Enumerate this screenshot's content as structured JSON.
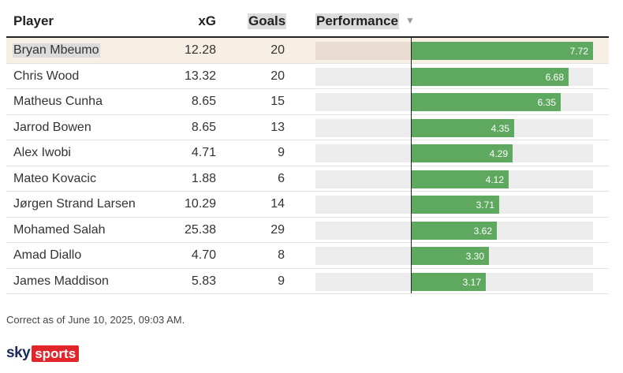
{
  "header": {
    "player": "Player",
    "xg": "xG",
    "goals": "Goals",
    "performance": "Performance",
    "sort_icon": "sort-descending-icon"
  },
  "chart_data": {
    "type": "bar",
    "highlighted_row": 0,
    "perf_range": [
      0,
      7.72
    ],
    "rows": [
      {
        "player": "Bryan Mbeumo",
        "xg": "12.28",
        "goals": "20",
        "performance": "7.72"
      },
      {
        "player": "Chris Wood",
        "xg": "13.32",
        "goals": "20",
        "performance": "6.68"
      },
      {
        "player": "Matheus Cunha",
        "xg": "8.65",
        "goals": "15",
        "performance": "6.35"
      },
      {
        "player": "Jarrod Bowen",
        "xg": "8.65",
        "goals": "13",
        "performance": "4.35"
      },
      {
        "player": "Alex Iwobi",
        "xg": "4.71",
        "goals": "9",
        "performance": "4.29"
      },
      {
        "player": "Mateo Kovacic",
        "xg": "1.88",
        "goals": "6",
        "performance": "4.12"
      },
      {
        "player": "Jørgen Strand Larsen",
        "xg": "10.29",
        "goals": "14",
        "performance": "3.71"
      },
      {
        "player": "Mohamed Salah",
        "xg": "25.38",
        "goals": "29",
        "performance": "3.62"
      },
      {
        "player": "Amad Diallo",
        "xg": "4.70",
        "goals": "8",
        "performance": "3.30"
      },
      {
        "player": "James Maddison",
        "xg": "5.83",
        "goals": "9",
        "performance": "3.17"
      }
    ]
  },
  "footnote": "Correct as of June 10, 2025, 09:03 AM.",
  "logo": {
    "sky": "sky",
    "sports": "sports"
  },
  "colors": {
    "bar": "#5ea860",
    "highlight": "#f7efe3",
    "logo_red": "#e0262b",
    "logo_navy": "#1b2a5a"
  }
}
